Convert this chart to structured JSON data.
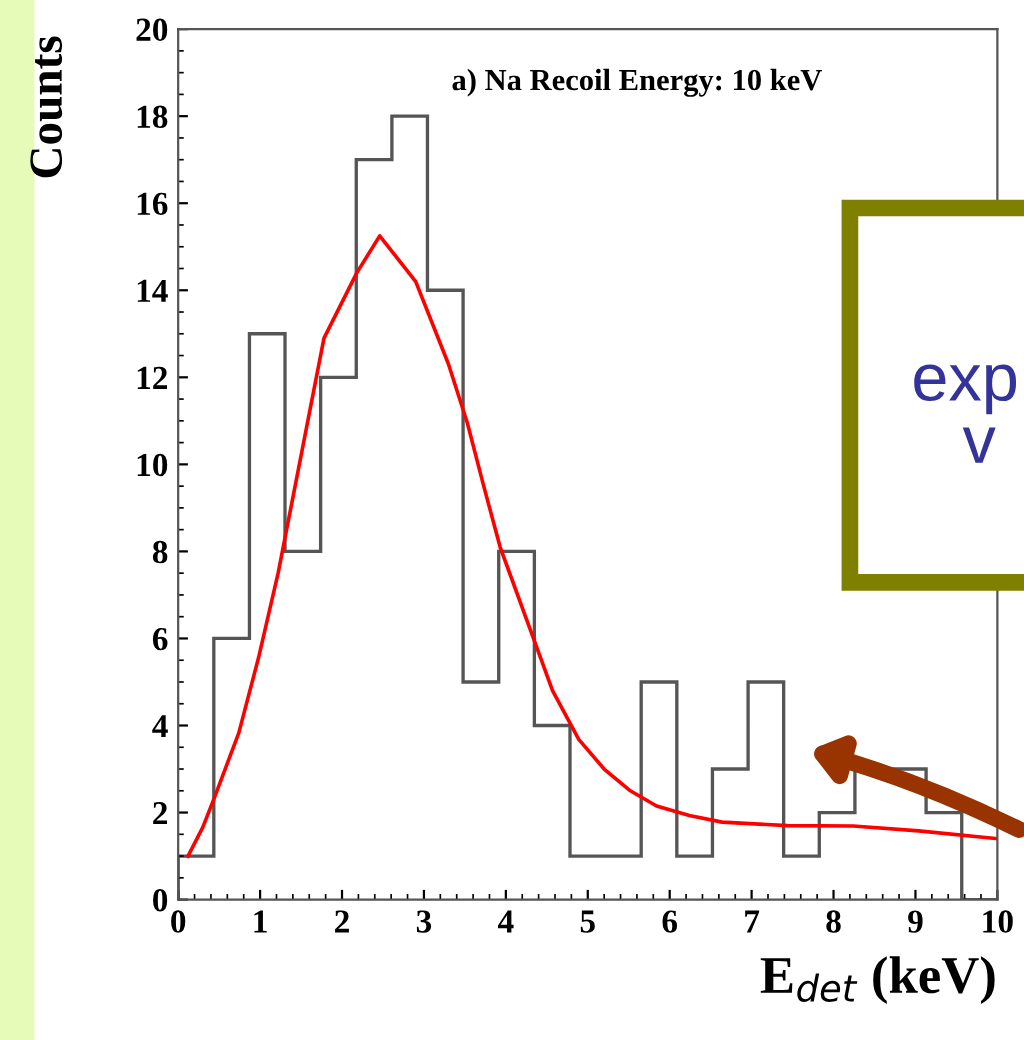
{
  "chart_data": {
    "type": "histogram",
    "xlabel": "E$_{det}$ (keV)",
    "ylabel": "Counts",
    "bins": [
      0,
      0.435,
      0.87,
      1.304,
      1.739,
      2.174,
      2.609,
      3.043,
      3.478,
      3.913,
      4.348,
      4.783,
      5.217,
      5.652,
      6.087,
      6.522,
      6.957,
      7.391,
      7.826,
      8.261,
      8.696,
      9.13,
      9.565,
      10
    ],
    "values": [
      1,
      6,
      13,
      8,
      12,
      17,
      18,
      14,
      5,
      8,
      4,
      1,
      1,
      5,
      1,
      3,
      5,
      1,
      2,
      3,
      3,
      2,
      0
    ],
    "color": "#555555",
    "series": [
      {
        "type": "line",
        "color": "#ff0000",
        "x": [
          0.12,
          0.3,
          0.44,
          0.74,
          0.98,
          1.22,
          1.5,
          1.78,
          2.18,
          2.46,
          2.9,
          3.3,
          3.53,
          3.73,
          3.93,
          4.25,
          4.57,
          4.89,
          5.2,
          5.52,
          5.84,
          6.24,
          6.64,
          7.44,
          8.24,
          9.04,
          10
        ],
        "values": [
          1,
          1.66,
          2.33,
          3.83,
          5.55,
          7.5,
          10.2,
          12.9,
          14.4,
          15.25,
          14.2,
          12.3,
          10.95,
          9.5,
          8.1,
          6.45,
          4.8,
          3.68,
          3.0,
          2.5,
          2.15,
          1.93,
          1.78,
          1.7,
          1.69,
          1.58,
          1.4
        ]
      }
    ],
    "xlim": [
      0,
      10
    ],
    "xticks": [
      0,
      1,
      2,
      3,
      4,
      5,
      6,
      7,
      8,
      9,
      10
    ],
    "ylim": [
      0,
      20
    ],
    "yticks": [
      0,
      2,
      4,
      6,
      8,
      10,
      12,
      14,
      16,
      18,
      20
    ],
    "grid": false,
    "annotations": [
      "a) Na Recoil Energy: 10 keV",
      "exp",
      "v"
    ]
  }
}
